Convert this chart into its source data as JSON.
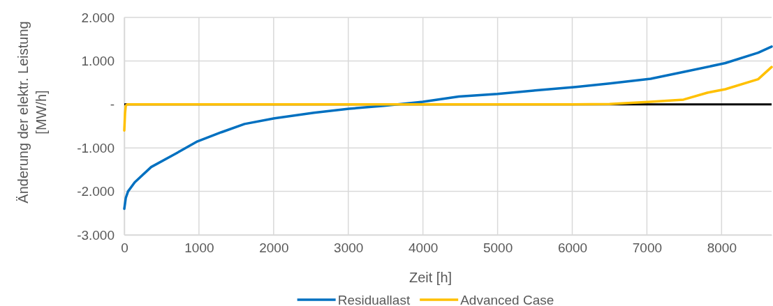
{
  "chart_data": {
    "type": "line",
    "xlabel": "Zeit [h]",
    "ylabel": "Änderung der elektr. Leistung [MW/h]",
    "xlim": [
      0,
      8670
    ],
    "xticks": [
      0,
      1000,
      2000,
      3000,
      4000,
      5000,
      6000,
      7000,
      8000
    ],
    "ylim": [
      -3000,
      2000
    ],
    "yticks": [
      {
        "value": -3000,
        "label": "-3.000"
      },
      {
        "value": -2000,
        "label": "-2.000"
      },
      {
        "value": -1000,
        "label": "-1.000"
      },
      {
        "value": 0,
        "label": "-"
      },
      {
        "value": 1000,
        "label": "1.000"
      },
      {
        "value": 2000,
        "label": "2.000"
      }
    ],
    "grid": true,
    "legend": "bottom",
    "line_style": "solid",
    "marker": "none",
    "ref_lines": [
      {
        "axis": "y",
        "value": 0,
        "color": "#000000"
      }
    ],
    "series": [
      {
        "name": "Residuallast",
        "color": "#0070c0",
        "x": [
          0,
          20,
          50,
          140,
          360,
          670,
          980,
          1300,
          1610,
          2010,
          2540,
          3010,
          3480,
          4000,
          4480,
          5000,
          5500,
          6050,
          6500,
          7050,
          7500,
          8050,
          8490,
          8670
        ],
        "values": [
          -2400,
          -2150,
          -2000,
          -1790,
          -1440,
          -1150,
          -850,
          -640,
          -450,
          -320,
          -190,
          -100,
          -30,
          60,
          180,
          240,
          320,
          400,
          480,
          590,
          750,
          950,
          1190,
          1330
        ]
      },
      {
        "name": "Advanced Case",
        "color": "#ffc000",
        "x": [
          0,
          10,
          20,
          40,
          1000,
          3000,
          6000,
          6500,
          7050,
          7490,
          7810,
          8050,
          8490,
          8670
        ],
        "values": [
          -600,
          -200,
          -30,
          0,
          0,
          0,
          0,
          10,
          60,
          110,
          270,
          350,
          580,
          860
        ]
      }
    ]
  }
}
